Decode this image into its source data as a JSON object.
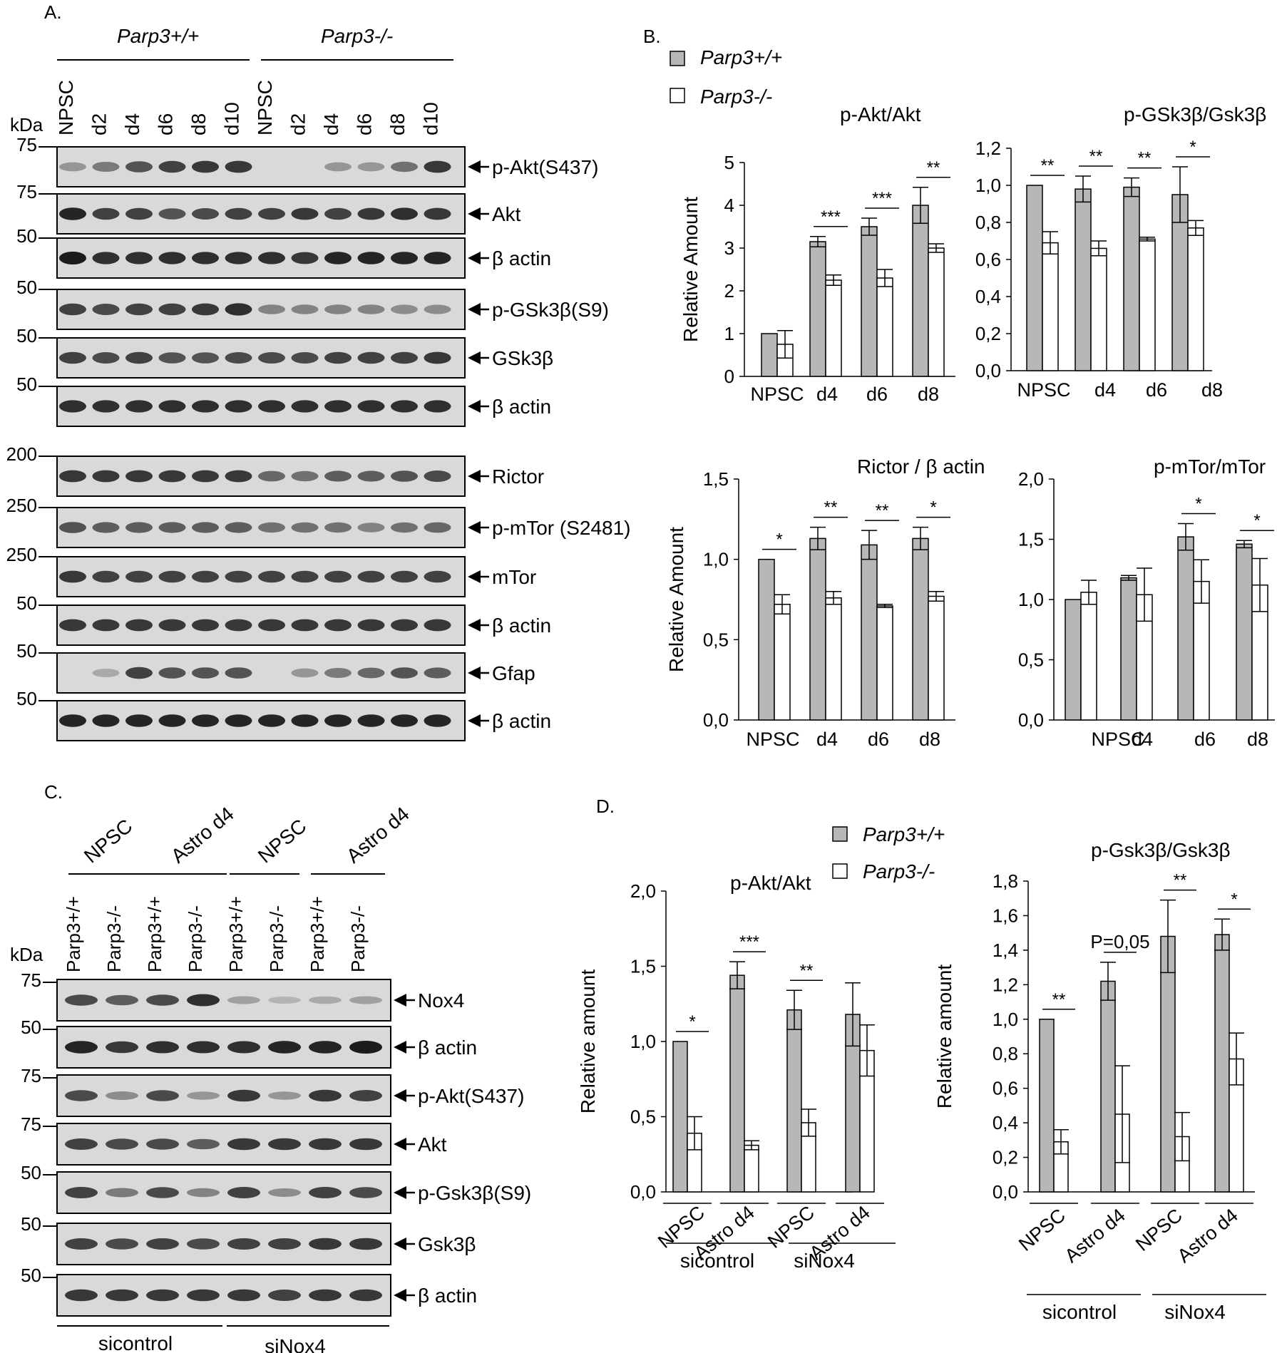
{
  "panel_a": {
    "letter": "A.",
    "group_wt": "Parp3+/+",
    "group_ko": "Parp3-/-",
    "kda_label": "kDa",
    "lanes": [
      "NPSC",
      "d2",
      "d4",
      "d6",
      "d8",
      "d10",
      "NPSC",
      "d2",
      "d4",
      "d6",
      "d8",
      "d10"
    ],
    "blots": [
      {
        "marker": "75",
        "protein": "p-Akt(S437)",
        "intensity": [
          0.35,
          0.5,
          0.7,
          0.8,
          0.85,
          0.85,
          0.0,
          0.0,
          0.35,
          0.35,
          0.55,
          0.85
        ]
      },
      {
        "marker": "75",
        "protein": "Akt",
        "intensity": [
          0.95,
          0.8,
          0.8,
          0.7,
          0.75,
          0.8,
          0.8,
          0.85,
          0.8,
          0.85,
          0.9,
          0.85
        ]
      },
      {
        "marker": "50",
        "protein": "β actin",
        "intensity": [
          1.0,
          0.9,
          0.9,
          0.9,
          0.9,
          0.9,
          0.9,
          0.85,
          0.95,
          0.95,
          0.95,
          0.95
        ]
      },
      {
        "marker": "50",
        "protein": "p-GSk3β(S9)",
        "intensity": [
          0.8,
          0.75,
          0.8,
          0.8,
          0.85,
          0.9,
          0.45,
          0.45,
          0.45,
          0.45,
          0.4,
          0.4
        ]
      },
      {
        "marker": "50",
        "protein": "GSk3β",
        "intensity": [
          0.8,
          0.75,
          0.8,
          0.7,
          0.7,
          0.75,
          0.75,
          0.75,
          0.8,
          0.8,
          0.8,
          0.85
        ]
      },
      {
        "marker": "50",
        "protein": "β actin",
        "intensity": [
          0.9,
          0.9,
          0.9,
          0.9,
          0.9,
          0.9,
          0.9,
          0.9,
          0.9,
          0.9,
          0.9,
          0.9
        ]
      },
      {
        "marker": "200",
        "protein": "Rictor",
        "intensity": [
          0.85,
          0.85,
          0.85,
          0.85,
          0.85,
          0.85,
          0.6,
          0.55,
          0.65,
          0.65,
          0.7,
          0.75
        ]
      },
      {
        "marker": "250",
        "protein": "p-mTor (S2481)",
        "intensity": [
          0.7,
          0.65,
          0.65,
          0.65,
          0.65,
          0.65,
          0.55,
          0.55,
          0.55,
          0.45,
          0.55,
          0.6
        ]
      },
      {
        "marker": "250",
        "protein": "mTor",
        "intensity": [
          0.85,
          0.8,
          0.8,
          0.8,
          0.8,
          0.8,
          0.8,
          0.8,
          0.8,
          0.8,
          0.8,
          0.8
        ]
      },
      {
        "marker": "50",
        "protein": "β actin",
        "intensity": [
          0.85,
          0.85,
          0.85,
          0.85,
          0.85,
          0.85,
          0.85,
          0.85,
          0.85,
          0.85,
          0.85,
          0.85
        ]
      },
      {
        "marker": "50",
        "protein": "Gfap",
        "intensity": [
          0.0,
          0.25,
          0.8,
          0.7,
          0.7,
          0.7,
          0.0,
          0.35,
          0.5,
          0.6,
          0.7,
          0.65
        ]
      },
      {
        "marker": "50",
        "protein": "β actin",
        "intensity": [
          0.95,
          0.95,
          0.95,
          0.95,
          0.95,
          0.95,
          0.95,
          0.95,
          0.95,
          0.95,
          0.95,
          0.95
        ]
      }
    ]
  },
  "panel_b": {
    "letter": "B.",
    "legend": [
      "Parp3+/+",
      "Parp3-/-"
    ],
    "colors": {
      "wt": "#b7b7b7",
      "ko": "#ffffff"
    }
  },
  "panel_c": {
    "letter": "C.",
    "groups": [
      "NPSC",
      "Astro d4",
      "NPSC",
      "Astro d4"
    ],
    "genotypes": [
      "Parp3+/+",
      "Parp3-/-",
      "Parp3+/+",
      "Parp3-/-",
      "Parp3+/+",
      "Parp3-/-",
      "Parp3+/+",
      "Parp3-/-"
    ],
    "kda_label": "kDa",
    "treatments": [
      "sicontrol",
      "siNox4"
    ],
    "blots": [
      {
        "marker": "75",
        "protein": "Nox4",
        "intensity": [
          0.75,
          0.65,
          0.75,
          0.9,
          0.3,
          0.2,
          0.25,
          0.3
        ]
      },
      {
        "marker": "50",
        "protein": "β actin",
        "intensity": [
          0.95,
          0.85,
          0.9,
          0.9,
          0.9,
          0.95,
          0.95,
          1.0
        ]
      },
      {
        "marker": "75",
        "protein": "p-Akt(S437)",
        "intensity": [
          0.75,
          0.4,
          0.75,
          0.35,
          0.85,
          0.35,
          0.85,
          0.8
        ]
      },
      {
        "marker": "75",
        "protein": "Akt",
        "intensity": [
          0.8,
          0.75,
          0.75,
          0.65,
          0.85,
          0.85,
          0.85,
          0.85
        ]
      },
      {
        "marker": "50",
        "protein": "p-Gsk3β(S9)",
        "intensity": [
          0.8,
          0.5,
          0.75,
          0.45,
          0.8,
          0.4,
          0.8,
          0.75
        ]
      },
      {
        "marker": "50",
        "protein": "Gsk3β",
        "intensity": [
          0.8,
          0.75,
          0.8,
          0.75,
          0.8,
          0.8,
          0.85,
          0.85
        ]
      },
      {
        "marker": "50",
        "protein": "β actin",
        "intensity": [
          0.85,
          0.85,
          0.85,
          0.85,
          0.85,
          0.8,
          0.85,
          0.85
        ]
      }
    ]
  },
  "panel_d": {
    "letter": "D.",
    "legend": [
      "Parp3+/+",
      "Parp3-/-"
    ]
  },
  "chart_data": [
    {
      "type": "bar",
      "id": "b1",
      "title": "p-Akt/Akt",
      "ylabel": "Relative Amount",
      "categories": [
        "NPSC",
        "d4",
        "d6",
        "d8"
      ],
      "ylim": [
        0,
        5
      ],
      "yticks": [
        "0",
        "1",
        "2",
        "3",
        "4",
        "5"
      ],
      "series": [
        {
          "name": "Parp3+/+",
          "values": [
            1.0,
            3.15,
            3.5,
            4.0
          ],
          "errors": [
            0.0,
            0.12,
            0.2,
            0.42
          ]
        },
        {
          "name": "Parp3-/-",
          "values": [
            0.75,
            2.25,
            2.3,
            3.0
          ],
          "errors": [
            0.32,
            0.12,
            0.2,
            0.1
          ]
        }
      ],
      "significance": [
        "",
        "***",
        "***",
        "**"
      ]
    },
    {
      "type": "bar",
      "id": "b2",
      "title": "p-GSk3β/Gsk3β",
      "ylabel": "",
      "categories": [
        "NPSC",
        "d4",
        "d6",
        "d8"
      ],
      "ylim": [
        0,
        1.2
      ],
      "yticks": [
        "0,0",
        "0,2",
        "0,4",
        "0,6",
        "0,8",
        "1,0",
        "1,2"
      ],
      "series": [
        {
          "name": "Parp3+/+",
          "values": [
            1.0,
            0.98,
            0.99,
            0.95
          ],
          "errors": [
            0.0,
            0.07,
            0.05,
            0.15
          ]
        },
        {
          "name": "Parp3-/-",
          "values": [
            0.69,
            0.66,
            0.71,
            0.77
          ],
          "errors": [
            0.06,
            0.04,
            0.01,
            0.04
          ]
        }
      ],
      "significance": [
        "**",
        "**",
        "**",
        "*"
      ]
    },
    {
      "type": "bar",
      "id": "b3",
      "title": "Rictor / β actin",
      "ylabel": "Relative Amount",
      "categories": [
        "NPSC",
        "d4",
        "d6",
        "d8"
      ],
      "ylim": [
        0,
        1.5
      ],
      "yticks": [
        "0,0",
        "0,5",
        "1,0",
        "1,5"
      ],
      "series": [
        {
          "name": "Parp3+/+",
          "values": [
            1.0,
            1.13,
            1.09,
            1.13
          ],
          "errors": [
            0.0,
            0.07,
            0.09,
            0.07
          ]
        },
        {
          "name": "Parp3-/-",
          "values": [
            0.72,
            0.76,
            0.71,
            0.77
          ],
          "errors": [
            0.06,
            0.04,
            0.01,
            0.03
          ]
        }
      ],
      "significance": [
        "*",
        "**",
        "**",
        "*"
      ]
    },
    {
      "type": "bar",
      "id": "b4",
      "title": "p-mTor/mTor",
      "ylabel": "",
      "categories": [
        "NPSC",
        "d4",
        "d6",
        "d8"
      ],
      "ylim": [
        0,
        2.0
      ],
      "yticks": [
        "0,0",
        "0,5",
        "1,0",
        "1,5",
        "2,0"
      ],
      "series": [
        {
          "name": "Parp3+/+",
          "values": [
            1.0,
            1.18,
            1.52,
            1.46
          ],
          "errors": [
            0.0,
            0.02,
            0.11,
            0.03
          ]
        },
        {
          "name": "Parp3-/-",
          "values": [
            1.06,
            1.04,
            1.15,
            1.12
          ],
          "errors": [
            0.1,
            0.22,
            0.18,
            0.22
          ]
        }
      ],
      "significance": [
        "",
        "",
        "*",
        "*"
      ]
    },
    {
      "type": "bar",
      "id": "d1",
      "title": "p-Akt/Akt",
      "ylabel": "Relative amount",
      "categories": [
        "NPSC",
        "Astro d4",
        "NPSC",
        "Astro d4"
      ],
      "treatments": [
        "sicontrol",
        "siNox4"
      ],
      "ylim": [
        0,
        2.0
      ],
      "yticks": [
        "0,0",
        "0,5",
        "1,0",
        "1,5",
        "2,0"
      ],
      "series": [
        {
          "name": "Parp3+/+",
          "values": [
            1.0,
            1.44,
            1.21,
            1.18
          ],
          "errors": [
            0.0,
            0.09,
            0.13,
            0.21
          ]
        },
        {
          "name": "Parp3-/-",
          "values": [
            0.39,
            0.31,
            0.46,
            0.94
          ],
          "errors": [
            0.11,
            0.03,
            0.09,
            0.17
          ]
        }
      ],
      "significance": [
        "*",
        "***",
        "**",
        ""
      ]
    },
    {
      "type": "bar",
      "id": "d2",
      "title": "p-Gsk3β/Gsk3β",
      "ylabel": "Relative amount",
      "categories": [
        "NPSC",
        "Astro d4",
        "NPSC",
        "Astro d4"
      ],
      "treatments": [
        "sicontrol",
        "siNox4"
      ],
      "ylim": [
        0,
        1.8
      ],
      "yticks": [
        "0,0",
        "0,2",
        "0,4",
        "0,6",
        "0,8",
        "1,0",
        "1,2",
        "1,4",
        "1,6",
        "1,8"
      ],
      "series": [
        {
          "name": "Parp3+/+",
          "values": [
            1.0,
            1.22,
            1.48,
            1.49
          ],
          "errors": [
            0.0,
            0.11,
            0.21,
            0.09
          ]
        },
        {
          "name": "Parp3-/-",
          "values": [
            0.29,
            0.45,
            0.32,
            0.77
          ],
          "errors": [
            0.07,
            0.28,
            0.14,
            0.15
          ]
        }
      ],
      "significance": [
        "**",
        "P=0,05",
        "**",
        "*"
      ]
    }
  ]
}
